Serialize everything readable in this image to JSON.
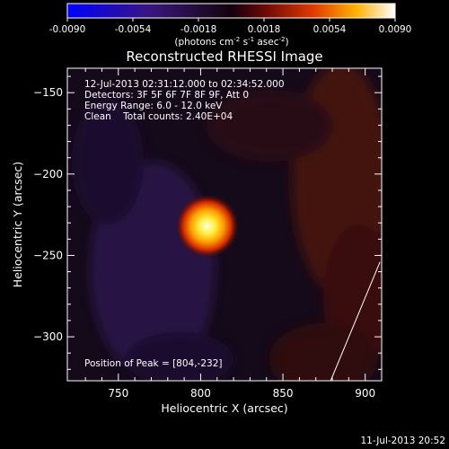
{
  "chart_data": {
    "type": "heatmap",
    "title": "Reconstructed RHESSI Image",
    "xlabel": "Heliocentric X (arcsec)",
    "ylabel": "Heliocentric Y (arcsec)",
    "xlim": [
      719,
      910
    ],
    "ylim": [
      -327,
      -135
    ],
    "xticks": [
      750,
      800,
      850,
      900
    ],
    "yticks": [
      -150,
      -200,
      -250,
      -300
    ],
    "colorbar": {
      "min": -0.009,
      "max": 0.009,
      "ticks": [
        "-0.0090",
        "-0.0054",
        "-0.0018",
        "0.0018",
        "0.0054",
        "0.0090"
      ],
      "unit_label": "(photons cm",
      "unit_sup1": "-2",
      "unit_mid": " s",
      "unit_sup2": "-1",
      "unit_end": " asec",
      "unit_sup3": "-2",
      "unit_close": ")"
    },
    "annotations": [
      "12-Jul-2013 02:31:12.000 to 02:34:52.000",
      "Detectors: 3F 5F 6F 7F 8F 9F, Att 0",
      "Energy Range: 6.0 - 12.0 keV",
      "Clean    Total counts: 2.40E+04"
    ],
    "peak_label": "Position of Peak = [804,-232]",
    "peak": [
      804,
      -232
    ],
    "peak_value": 0.009,
    "timestamp": "11-Jul-2013 20:52",
    "limb_line": [
      [
        909,
        -254
      ],
      [
        879,
        -327
      ]
    ]
  }
}
